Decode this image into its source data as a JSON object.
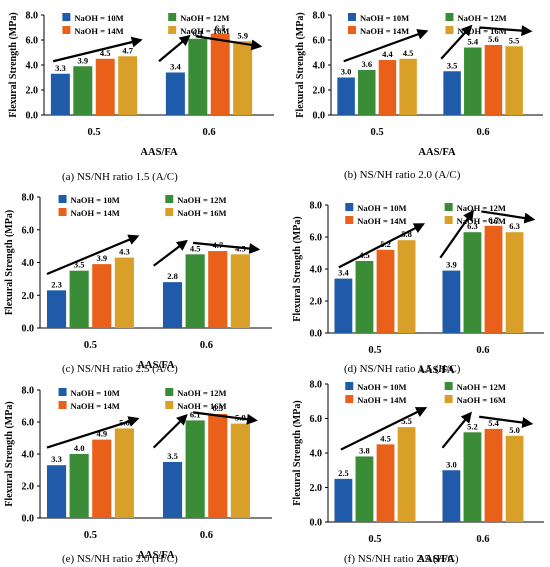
{
  "legend_labels": [
    "NaOH = 10M",
    "NaOH = 12M",
    "NaOH = 14M",
    "NaOH = 16M"
  ],
  "colors": {
    "series": [
      "#1f5ba8",
      "#3a8d36",
      "#e9601b",
      "#d9a029"
    ],
    "arrow": "#000000"
  },
  "chart_data": [
    {
      "type": "bar",
      "panel_letter": "(a)",
      "caption": "NS/NH ratio 1.5 (A/C)",
      "xlabel": "AAS/FA",
      "ylabel": "Flexural Strength (MPa)",
      "categories": [
        "0.5",
        "0.6"
      ],
      "ylim": [
        0,
        8
      ],
      "yticks": [
        "0.0",
        "2.0",
        "4.0",
        "6.0",
        "8.0"
      ],
      "series": [
        {
          "name": "NaOH = 10M",
          "values": [
            3.3,
            3.4
          ]
        },
        {
          "name": "NaOH = 12M",
          "values": [
            3.9,
            6.1
          ]
        },
        {
          "name": "NaOH = 14M",
          "values": [
            4.5,
            6.5
          ]
        },
        {
          "name": "NaOH = 16M",
          "values": [
            4.7,
            5.9
          ]
        }
      ],
      "data_labels": [
        [
          "3.3",
          "3.9",
          "4.5",
          "4.7"
        ],
        [
          "3.4",
          "6.1",
          "6.5",
          "5.9"
        ]
      ]
    },
    {
      "type": "bar",
      "panel_letter": "(b)",
      "caption": "NS/NH ratio 2.0 (A/C)",
      "xlabel": "AAS/FA",
      "ylabel": "Flexural Strength (MPa)",
      "categories": [
        "0.5",
        "0.6"
      ],
      "ylim": [
        0,
        8
      ],
      "yticks": [
        "0.0",
        "2.0",
        "4.0",
        "6.0",
        "8.0"
      ],
      "series": [
        {
          "name": "NaOH = 10M",
          "values": [
            3.0,
            3.5
          ]
        },
        {
          "name": "NaOH = 12M",
          "values": [
            3.6,
            5.4
          ]
        },
        {
          "name": "NaOH = 14M",
          "values": [
            4.4,
            5.6
          ]
        },
        {
          "name": "NaOH = 16M",
          "values": [
            4.5,
            5.5
          ]
        }
      ],
      "data_labels": [
        [
          "3.0",
          "3.6",
          "4.4",
          "4.5"
        ],
        [
          "3.5",
          "5.4",
          "5.6",
          "5.5"
        ]
      ]
    },
    {
      "type": "bar",
      "panel_letter": "(c)",
      "caption": "NS/NH ratio 2.5 (A/C)",
      "xlabel": "AAS/FA",
      "ylabel": "Flexural Strength (MPa)",
      "categories": [
        "0.5",
        "0.6"
      ],
      "ylim": [
        0,
        8
      ],
      "yticks": [
        "0.0",
        "2.0",
        "4.0",
        "6.0",
        "8.0"
      ],
      "series": [
        {
          "name": "NaOH = 10M",
          "values": [
            2.3,
            2.8
          ]
        },
        {
          "name": "NaOH = 12M",
          "values": [
            3.5,
            4.5
          ]
        },
        {
          "name": "NaOH = 14M",
          "values": [
            3.9,
            4.7
          ]
        },
        {
          "name": "NaOH = 16M",
          "values": [
            4.3,
            4.5
          ]
        }
      ],
      "data_labels": [
        [
          "2.3",
          "3.5",
          "3.9",
          "4.3"
        ],
        [
          "2.8",
          "4.5",
          "4.7",
          "4.5"
        ]
      ]
    },
    {
      "type": "bar",
      "panel_letter": "(d)",
      "caption": "NS/NH ratio 1.5 (H/C)",
      "xlabel": "AAS/FA",
      "ylabel": "Flexural Strength (MPa)",
      "categories": [
        "0.5",
        "0.6"
      ],
      "ylim": [
        0,
        8
      ],
      "yticks": [
        "0.0",
        "2.0",
        "4.0",
        "6.0",
        "8.0"
      ],
      "series": [
        {
          "name": "NaOH = 10M",
          "values": [
            3.4,
            3.9
          ]
        },
        {
          "name": "NaOH = 12M",
          "values": [
            4.5,
            6.3
          ]
        },
        {
          "name": "NaOH = 14M",
          "values": [
            5.2,
            6.7
          ]
        },
        {
          "name": "NaOH = 16M",
          "values": [
            5.8,
            6.3
          ]
        }
      ],
      "data_labels": [
        [
          "3.4",
          "4.5",
          "5.2",
          "5.8"
        ],
        [
          "3.9",
          "6.3",
          "6.7",
          "6.3"
        ]
      ]
    },
    {
      "type": "bar",
      "panel_letter": "(e)",
      "caption": "NS/NH ratio 2.0 (H/C)",
      "xlabel": "AAS/FA",
      "ylabel": "Flexural Strength (MPa)",
      "categories": [
        "0.5",
        "0.6"
      ],
      "ylim": [
        0,
        8
      ],
      "yticks": [
        "0.0",
        "2.0",
        "4.0",
        "6.0",
        "8.0"
      ],
      "series": [
        {
          "name": "NaOH = 10M",
          "values": [
            3.3,
            3.5
          ]
        },
        {
          "name": "NaOH = 12M",
          "values": [
            4.0,
            6.1
          ]
        },
        {
          "name": "NaOH = 14M",
          "values": [
            4.9,
            6.5
          ]
        },
        {
          "name": "NaOH = 16M",
          "values": [
            5.6,
            5.9
          ]
        }
      ],
      "data_labels": [
        [
          "3.3",
          "4.0",
          "4.9",
          "5.6"
        ],
        [
          "3.5",
          "6.1",
          "6.5",
          "5.9"
        ]
      ]
    },
    {
      "type": "bar",
      "panel_letter": "(f)",
      "caption": "NS/NH ratio 2.5 (H/C)",
      "xlabel": "AAS/FA",
      "ylabel": "Flexural Strength (MPa)",
      "categories": [
        "0.5",
        "0.6"
      ],
      "ylim": [
        0,
        8
      ],
      "yticks": [
        "0.0",
        "2.0",
        "4.0",
        "6.0",
        "8.0"
      ],
      "series": [
        {
          "name": "NaOH = 10M",
          "values": [
            2.5,
            3.0
          ]
        },
        {
          "name": "NaOH = 12M",
          "values": [
            3.8,
            5.2
          ]
        },
        {
          "name": "NaOH = 14M",
          "values": [
            4.5,
            5.4
          ]
        },
        {
          "name": "NaOH = 16M",
          "values": [
            5.5,
            5.0
          ]
        }
      ],
      "data_labels": [
        [
          "2.5",
          "3.8",
          "4.5",
          "5.5"
        ],
        [
          "3.0",
          "5.2",
          "5.4",
          "5.0"
        ]
      ]
    }
  ]
}
